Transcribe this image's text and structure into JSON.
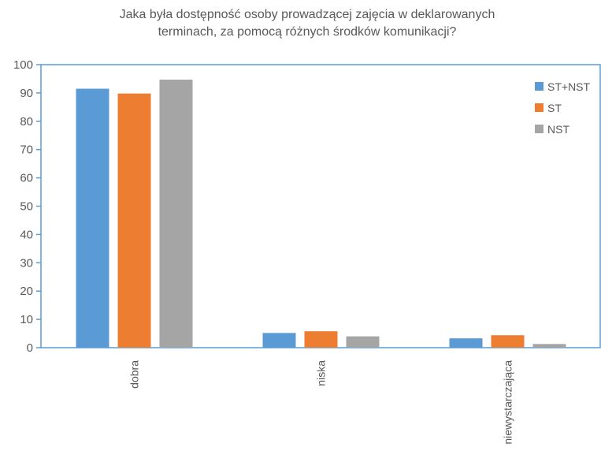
{
  "chart_data": {
    "type": "bar",
    "title_lines": [
      "Jaka była dostępność osoby prowadzącej zajęcia w deklarowanych",
      "terminach, za pomocą różnych środków komunikacji?"
    ],
    "categories": [
      "dobra",
      "niska",
      "niewystarczająca"
    ],
    "series": [
      {
        "name": "ST+NST",
        "color": "#5B9BD5",
        "values": [
          91.5,
          5.2,
          3.3
        ]
      },
      {
        "name": "ST",
        "color": "#ED7D31",
        "values": [
          89.8,
          5.8,
          4.4
        ]
      },
      {
        "name": "NST",
        "color": "#A5A5A5",
        "values": [
          94.7,
          4.0,
          1.3
        ]
      }
    ],
    "ylim": [
      0,
      100
    ],
    "yticks": [
      0,
      10,
      20,
      30,
      40,
      50,
      60,
      70,
      80,
      90,
      100
    ],
    "grid": false,
    "legend_position": "top-right",
    "axis_color": "#5B9BD5"
  }
}
